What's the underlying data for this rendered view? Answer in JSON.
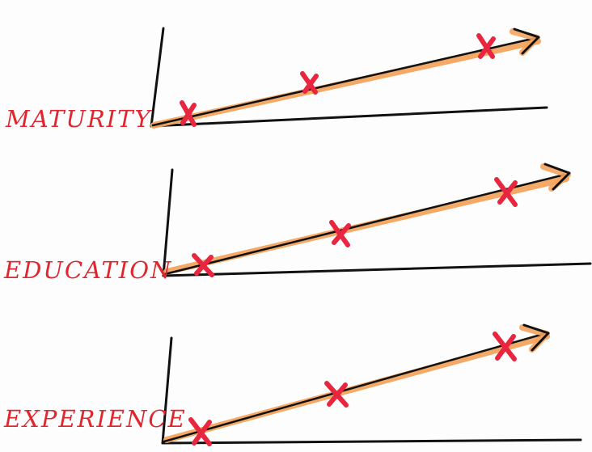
{
  "diagrams": [
    {
      "label": "MATURITY"
    },
    {
      "label": "EDUCATION"
    },
    {
      "label": "EXPERIENCE"
    }
  ],
  "colors": {
    "label": "#e0262e",
    "highlight": "#f3a45f",
    "ink": "#111111",
    "mark": "#e8263f"
  }
}
